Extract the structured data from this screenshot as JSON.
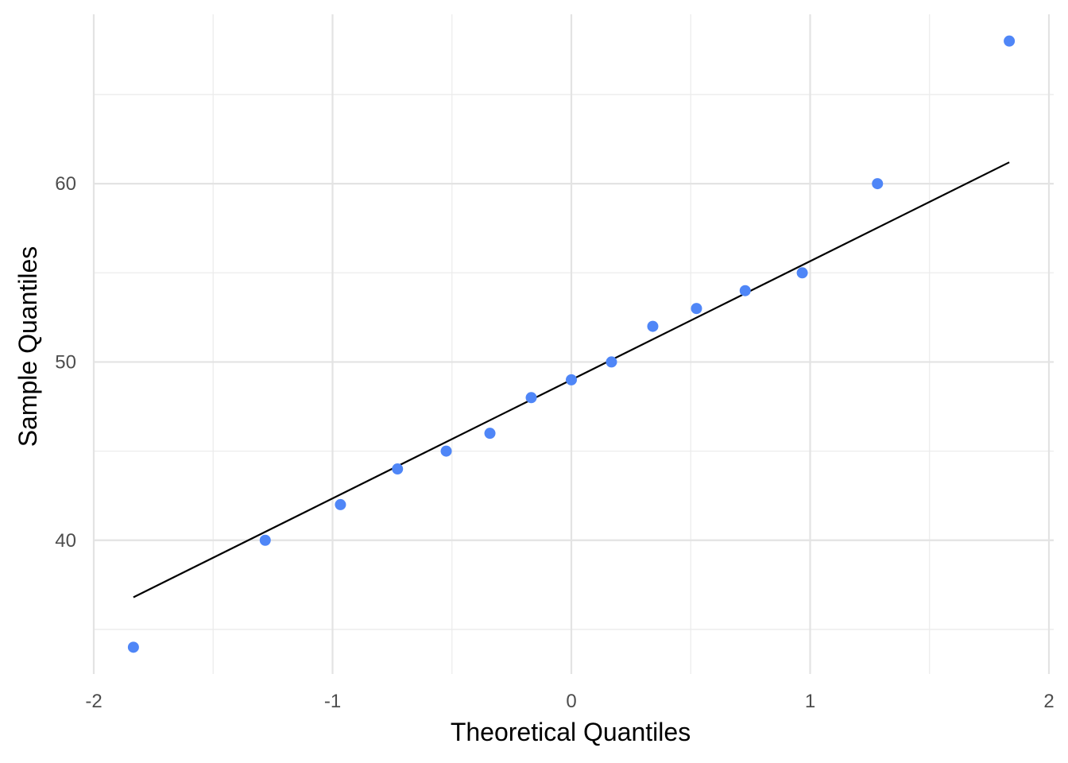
{
  "chart_data": {
    "type": "scatter",
    "xlabel": "Theoretical Quantiles",
    "ylabel": "Sample Quantiles",
    "xlim": [
      -2,
      2
    ],
    "ylim": [
      32.5,
      69.5
    ],
    "x_major_ticks": [
      -2,
      -1,
      0,
      1,
      2
    ],
    "x_minor_ticks": [
      -1.5,
      -0.5,
      0.5,
      1.5
    ],
    "y_major_ticks": [
      40,
      50,
      60
    ],
    "y_minor_ticks": [
      35,
      45,
      55,
      65
    ],
    "x_tick_labels": [
      "-2",
      "-1",
      "0",
      "1",
      "2"
    ],
    "y_tick_labels": [
      "40",
      "50",
      "60"
    ],
    "grid": true,
    "point_color": "#4f86f7",
    "line_color": "#000000",
    "points": [
      {
        "x": -1.834,
        "y": 34
      },
      {
        "x": -1.282,
        "y": 40
      },
      {
        "x": -0.967,
        "y": 42
      },
      {
        "x": -0.728,
        "y": 44
      },
      {
        "x": -0.524,
        "y": 45
      },
      {
        "x": -0.341,
        "y": 46
      },
      {
        "x": -0.168,
        "y": 48
      },
      {
        "x": 0.0,
        "y": 49
      },
      {
        "x": 0.168,
        "y": 50
      },
      {
        "x": 0.341,
        "y": 52
      },
      {
        "x": 0.524,
        "y": 53
      },
      {
        "x": 0.728,
        "y": 54
      },
      {
        "x": 0.967,
        "y": 55
      },
      {
        "x": 1.282,
        "y": 60
      },
      {
        "x": 1.834,
        "y": 68
      }
    ],
    "reference_line": {
      "x1": -1.834,
      "y1": 36.8,
      "x2": 1.834,
      "y2": 61.2
    }
  }
}
